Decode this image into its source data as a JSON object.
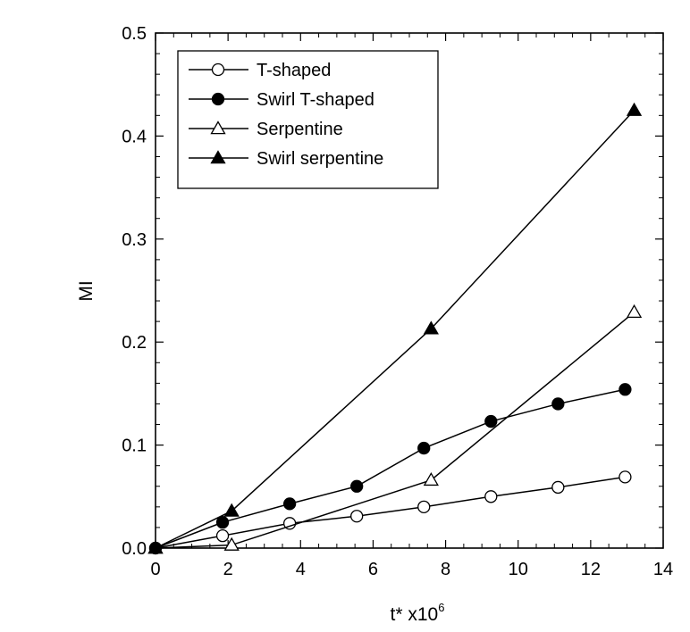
{
  "chart_data": {
    "type": "line",
    "title": "",
    "xlabel": "t* x10",
    "xlabel_superscript": "6",
    "ylabel": "MI",
    "xlim": [
      0,
      14
    ],
    "ylim": [
      0,
      0.5
    ],
    "xticks": [
      0,
      2,
      4,
      6,
      8,
      10,
      12,
      14
    ],
    "yticks": [
      0.0,
      0.1,
      0.2,
      0.3,
      0.4,
      0.5
    ],
    "xtick_labels": [
      "0",
      "2",
      "4",
      "6",
      "8",
      "10",
      "12",
      "14"
    ],
    "ytick_labels": [
      "0.0",
      "0.1",
      "0.2",
      "0.3",
      "0.4",
      "0.5"
    ],
    "grid": false,
    "legend_position": "top-left",
    "series": [
      {
        "name": "T-shaped",
        "marker": "circle-open",
        "x": [
          0,
          1.85,
          3.7,
          5.55,
          7.4,
          9.25,
          11.1,
          12.95
        ],
        "y": [
          0.0,
          0.012,
          0.024,
          0.031,
          0.04,
          0.05,
          0.059,
          0.069
        ]
      },
      {
        "name": "Swirl T-shaped",
        "marker": "circle-filled",
        "x": [
          0,
          1.85,
          3.7,
          5.55,
          7.4,
          9.25,
          11.1,
          12.95
        ],
        "y": [
          0.0,
          0.025,
          0.043,
          0.06,
          0.097,
          0.123,
          0.14,
          0.154
        ]
      },
      {
        "name": "Serpentine",
        "marker": "triangle-open",
        "x": [
          0,
          2.1,
          7.6,
          13.2
        ],
        "y": [
          0.0,
          0.003,
          0.066,
          0.229
        ]
      },
      {
        "name": "Swirl serpentine",
        "marker": "triangle-filled",
        "x": [
          0,
          2.1,
          7.6,
          13.2
        ],
        "y": [
          0.0,
          0.036,
          0.213,
          0.425
        ]
      }
    ]
  }
}
